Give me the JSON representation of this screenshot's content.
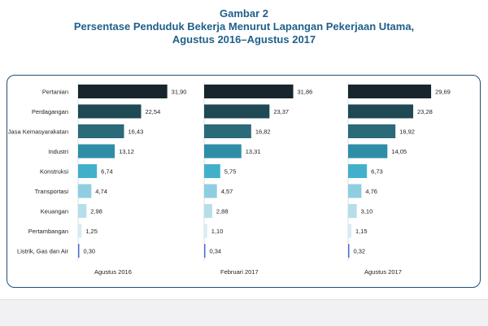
{
  "header": {
    "figure_number": "Gambar 2",
    "title_line1": "Persentase Penduduk Bekerja Menurut Lapangan Pekerjaan Utama,",
    "title_line2": "Agustus 2016–Agustus 2017"
  },
  "chart_data": {
    "type": "bar",
    "orientation": "horizontal",
    "categories": [
      "Pertanian",
      "Perdagangan",
      "Jasa Kemasyarakatan",
      "Industri",
      "Konstruksi",
      "Transportasi",
      "Keuangan",
      "Pertambangan",
      "Listrik, Gas dan Air"
    ],
    "series": [
      {
        "name": "Agustus 2016",
        "values": [
          31.9,
          22.54,
          16.43,
          13.12,
          6.74,
          4.74,
          2.98,
          1.25,
          0.3
        ],
        "labels": [
          "31,90",
          "22,54",
          "16,43",
          "13,12",
          "6,74",
          "4,74",
          "2,98",
          "1,25",
          "0,30"
        ]
      },
      {
        "name": "Februari 2017",
        "values": [
          31.86,
          23.37,
          16.82,
          13.31,
          5.75,
          4.57,
          2.88,
          1.1,
          0.34
        ],
        "labels": [
          "31,86",
          "23,37",
          "16,82",
          "13,31",
          "5,75",
          "4,57",
          "2,88",
          "1,10",
          "0,34"
        ]
      },
      {
        "name": "Agustus 2017",
        "values": [
          29.69,
          23.28,
          16.92,
          14.05,
          6.73,
          4.76,
          3.1,
          1.15,
          0.32
        ],
        "labels": [
          "29,69",
          "23,28",
          "16,92",
          "14,05",
          "6,73",
          "4,76",
          "3,10",
          "1,15",
          "0,32"
        ]
      }
    ],
    "colors": [
      "#16262c",
      "#1f4953",
      "#2b6a78",
      "#2e8ea8",
      "#43b0cb",
      "#8fcde0",
      "#b6deea",
      "#d6ecf3",
      "#4a6fd0"
    ],
    "xlim": [
      0,
      32
    ],
    "grid": false,
    "legend": "none"
  }
}
